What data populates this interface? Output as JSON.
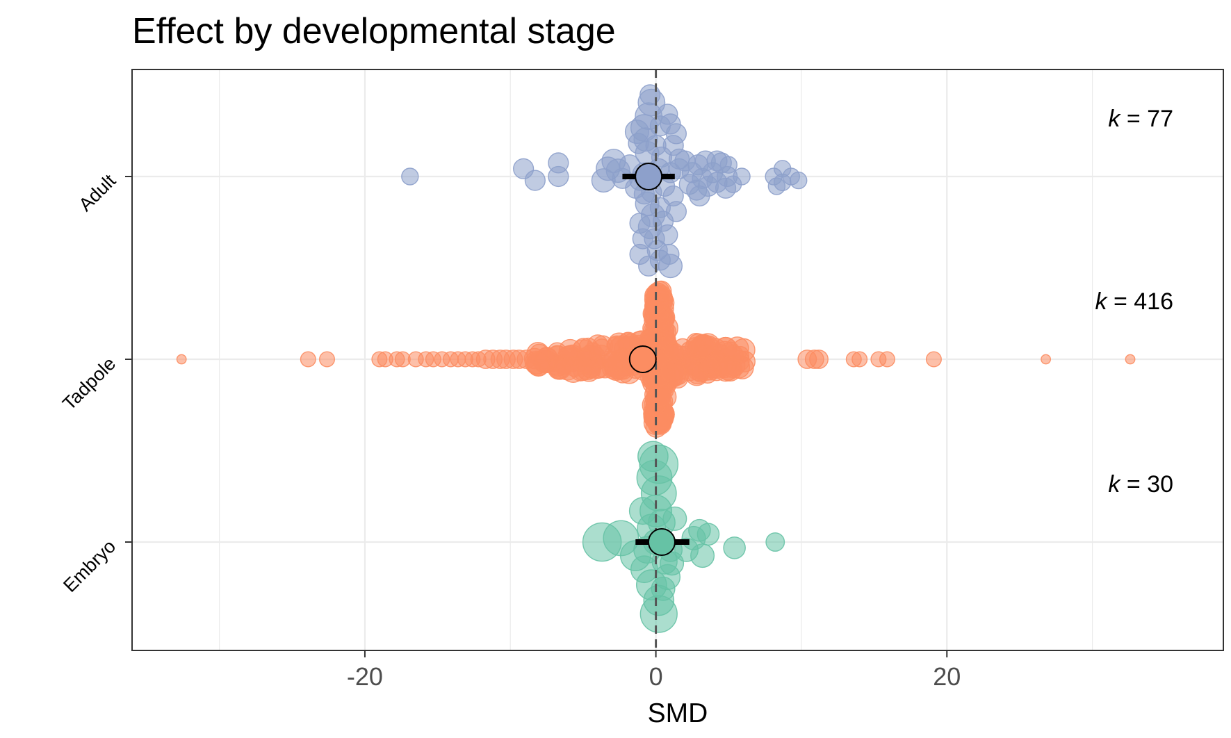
{
  "chart_data": {
    "type": "scatter",
    "title": "Effect by developmental stage",
    "xlabel": "SMD",
    "ylabel": "",
    "xlim": [
      -36,
      39
    ],
    "x_ticks": [
      -20,
      0,
      20
    ],
    "x_tick_labels": [
      "-20",
      "0",
      "20"
    ],
    "grid": true,
    "reference_line": {
      "x": 0,
      "style": "dashed",
      "color": "#555555"
    },
    "categories": [
      "Adult",
      "Tadpole",
      "Embryo"
    ],
    "series": [
      {
        "name": "Adult",
        "color": "#8DA0CB",
        "k_label": "k = 77",
        "estimate": -0.5,
        "ci": [
          -2.3,
          1.3
        ],
        "points": [
          [
            -16.9,
            0,
            0.5
          ],
          [
            -9.1,
            -0.2,
            0.6
          ],
          [
            -8.3,
            0.1,
            0.6
          ],
          [
            -6.7,
            0.0,
            0.6
          ],
          [
            -6.7,
            -0.35,
            0.6
          ],
          [
            -3.6,
            0.1,
            0.7
          ],
          [
            -3.3,
            -0.2,
            0.7
          ],
          [
            -2.9,
            -0.4,
            0.7
          ],
          [
            -2.6,
            -0.15,
            0.7
          ],
          [
            -2.3,
            0.05,
            0.6
          ],
          [
            -1.8,
            -0.3,
            0.6
          ],
          [
            -1.4,
            0.3,
            0.6
          ],
          [
            -1.1,
            0.1,
            0.6
          ],
          [
            -0.8,
            -0.05,
            0.7
          ],
          [
            -0.8,
            0.45,
            0.6
          ],
          [
            -0.6,
            0.7,
            0.7
          ],
          [
            -0.6,
            -0.6,
            0.7
          ],
          [
            -0.7,
            -0.95,
            0.7
          ],
          [
            -0.8,
            -1.25,
            0.8
          ],
          [
            -0.5,
            -1.55,
            0.8
          ],
          [
            -0.3,
            -1.9,
            0.8
          ],
          [
            -0.2,
            1.0,
            0.7
          ],
          [
            -0.4,
            1.3,
            0.7
          ],
          [
            -0.1,
            1.6,
            0.6
          ],
          [
            0.1,
            1.9,
            0.6
          ],
          [
            0.3,
            2.15,
            0.6
          ],
          [
            -0.5,
            2.3,
            0.6
          ],
          [
            0.6,
            0.25,
            0.6
          ],
          [
            0.3,
            0.8,
            0.6
          ],
          [
            0.5,
            1.15,
            0.6
          ],
          [
            0.8,
            1.5,
            0.6
          ],
          [
            0.9,
            2.0,
            0.6
          ],
          [
            1.0,
            2.3,
            0.7
          ],
          [
            1.2,
            0.5,
            0.6
          ],
          [
            1.4,
            0.9,
            0.6
          ],
          [
            1.6,
            -0.2,
            0.6
          ],
          [
            1.6,
            -0.45,
            0.6
          ],
          [
            1.2,
            -0.8,
            0.6
          ],
          [
            1.4,
            -1.1,
            0.6
          ],
          [
            1.0,
            -1.35,
            0.6
          ],
          [
            0.8,
            -1.6,
            0.6
          ],
          [
            0.3,
            -1.3,
            0.6
          ],
          [
            0.0,
            -0.8,
            0.6
          ],
          [
            0.4,
            -0.5,
            0.6
          ],
          [
            1.0,
            -0.1,
            0.6
          ],
          [
            -1.2,
            -0.85,
            0.6
          ],
          [
            -1.3,
            -1.15,
            0.7
          ],
          [
            -1.1,
            1.2,
            0.6
          ],
          [
            -0.9,
            1.6,
            0.6
          ],
          [
            -1.1,
            2.0,
            0.6
          ],
          [
            -0.3,
            0.4,
            0.6
          ],
          [
            0.2,
            -0.2,
            0.6
          ],
          [
            2.3,
            0.2,
            0.6
          ],
          [
            2.5,
            -0.1,
            0.6
          ],
          [
            2.8,
            0.35,
            0.6
          ],
          [
            2.9,
            -0.3,
            0.6
          ],
          [
            3.2,
            0.05,
            0.6
          ],
          [
            3.4,
            -0.4,
            0.6
          ],
          [
            3.6,
            0.25,
            0.6
          ],
          [
            3.9,
            -0.1,
            0.6
          ],
          [
            4.2,
            0.15,
            0.6
          ],
          [
            4.5,
            -0.35,
            0.6
          ],
          [
            4.8,
            0.3,
            0.6
          ],
          [
            4.9,
            0.0,
            0.6
          ],
          [
            2.0,
            -0.4,
            0.6
          ],
          [
            3.0,
            0.5,
            0.6
          ],
          [
            4.2,
            -0.4,
            0.6
          ],
          [
            5.0,
            -0.3,
            0.5
          ],
          [
            5.3,
            0.2,
            0.5
          ],
          [
            5.9,
            0.0,
            0.5
          ],
          [
            8.1,
            0.0,
            0.5
          ],
          [
            8.3,
            0.25,
            0.5
          ],
          [
            8.7,
            0.15,
            0.5
          ],
          [
            9.3,
            0.0,
            0.5
          ],
          [
            9.8,
            0.1,
            0.5
          ],
          [
            8.7,
            -0.2,
            0.5
          ],
          [
            -0.4,
            -2.1,
            0.6
          ]
        ]
      },
      {
        "name": "Tadpole",
        "color": "#FC8D62",
        "k_label": "k = 416",
        "estimate": -0.9,
        "ci": [
          -0.9,
          -0.9
        ],
        "generated_points": {
          "count": 416,
          "tails": [
            -32.6,
            -23.9,
            -22.6,
            -19.0,
            -18.6,
            -17.8,
            -17.4,
            -16.5,
            -15.8,
            -15.3,
            -14.7,
            -14.1,
            -13.6,
            -13.1,
            -12.6,
            -12.2,
            -11.7,
            -11.2,
            -10.7,
            -10.3,
            -9.8,
            -9.4,
            -8.9,
            10.4,
            10.9,
            11.2,
            13.6,
            14.0,
            15.3,
            15.9,
            19.1,
            26.8,
            32.6
          ]
        }
      },
      {
        "name": "Embryo",
        "color": "#66C2A5",
        "k_label": "k = 30",
        "estimate": 0.4,
        "ci": [
          -1.4,
          2.3
        ],
        "points": [
          [
            -3.7,
            0,
            1.15
          ],
          [
            -2.4,
            -0.1,
            1.05
          ],
          [
            -1.4,
            0.35,
            0.9
          ],
          [
            -0.8,
            0.7,
            0.8
          ],
          [
            -0.3,
            1.1,
            0.9
          ],
          [
            0.2,
            1.5,
            0.9
          ],
          [
            0.2,
            1.85,
            1.1
          ],
          [
            -0.6,
            0.2,
            0.8
          ],
          [
            -0.3,
            -0.35,
            0.85
          ],
          [
            0.0,
            -0.8,
            0.95
          ],
          [
            0.2,
            -1.25,
            1.05
          ],
          [
            -0.1,
            -1.65,
            1.05
          ],
          [
            0.2,
            -2.0,
            1.15
          ],
          [
            0.4,
            -0.5,
            0.8
          ],
          [
            0.6,
            0.5,
            0.75
          ],
          [
            0.8,
            0.9,
            0.75
          ],
          [
            0.5,
            1.2,
            0.7
          ],
          [
            1.0,
            0.2,
            0.7
          ],
          [
            -0.2,
            -2.2,
            0.9
          ],
          [
            0.0,
            0.0,
            0.75
          ],
          [
            2.1,
            0.2,
            0.7
          ],
          [
            2.6,
            -0.1,
            0.7
          ],
          [
            3.2,
            0.35,
            0.7
          ],
          [
            3.6,
            -0.2,
            0.65
          ],
          [
            3.0,
            -0.3,
            0.65
          ],
          [
            5.4,
            0.15,
            0.65
          ],
          [
            8.2,
            0.0,
            0.55
          ],
          [
            1.3,
            -0.6,
            0.7
          ],
          [
            1.1,
            0.55,
            0.7
          ],
          [
            -0.9,
            -0.8,
            0.8
          ]
        ]
      }
    ]
  }
}
